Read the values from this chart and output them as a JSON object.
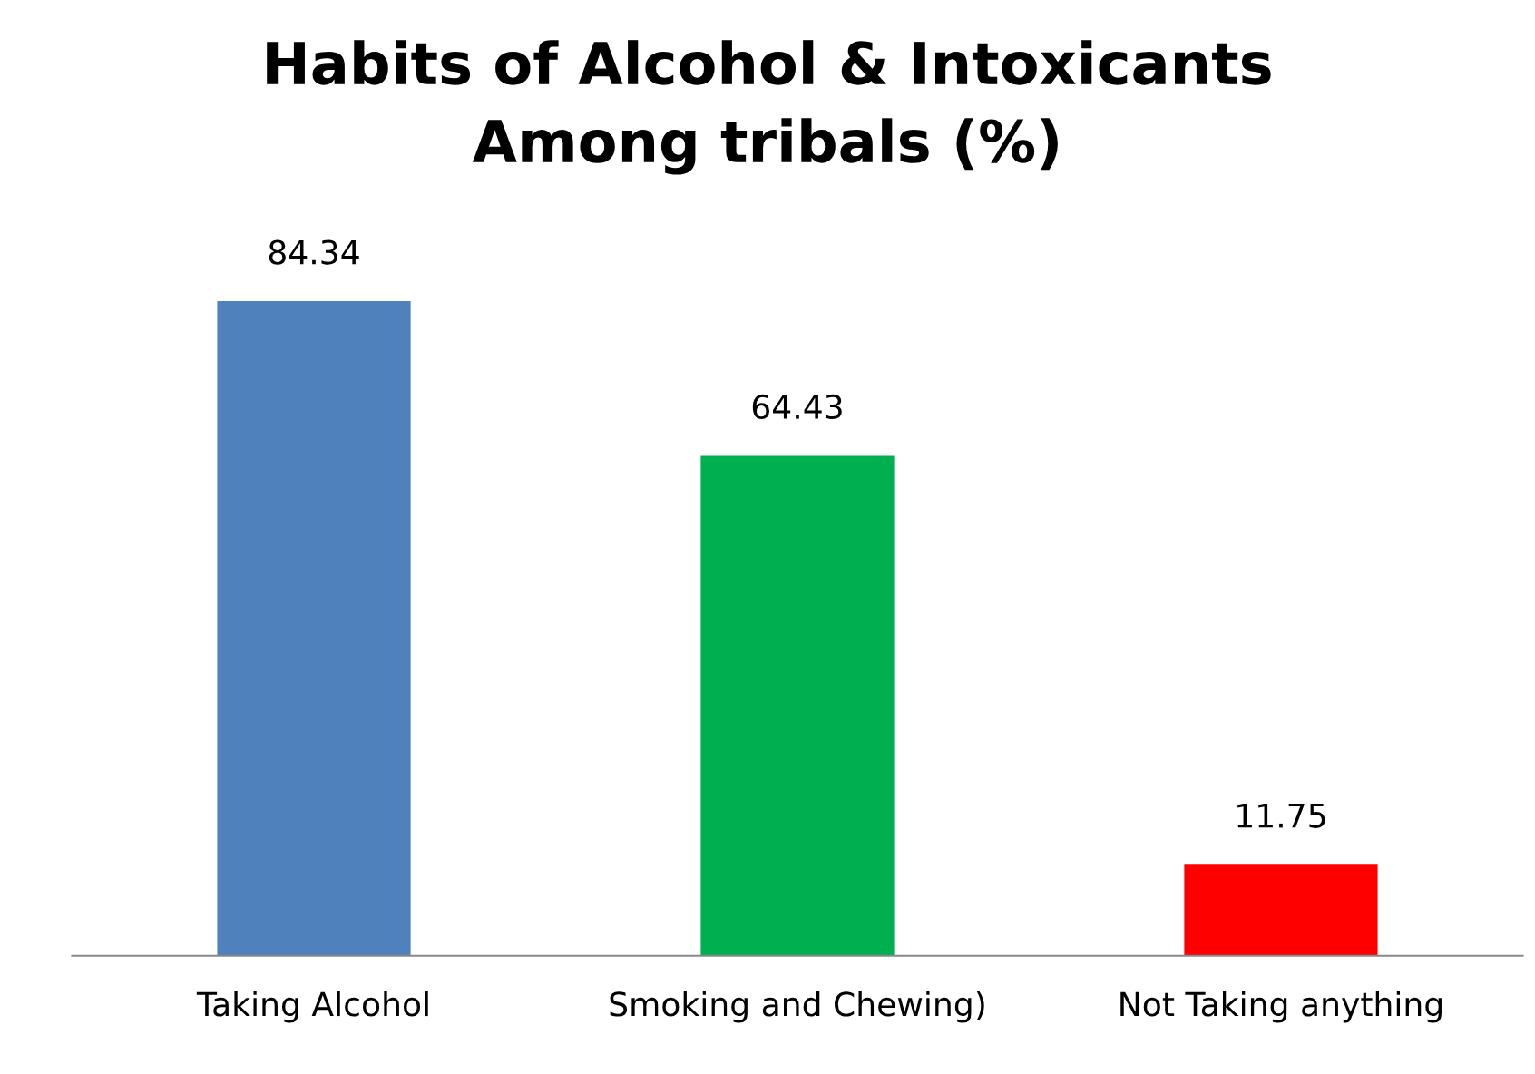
{
  "chart_data": {
    "type": "bar",
    "title": "Habits of Alcohol & Intoxicants\nAmong tribals (%)",
    "categories": [
      "Taking Alcohol",
      "Smoking and Chewing)",
      "Not Taking anything"
    ],
    "values": [
      84.34,
      64.43,
      11.75
    ],
    "colors": [
      "#4f81bd",
      "#00b050",
      "#ff0000"
    ],
    "data_labels": true,
    "grid": false,
    "legend": false,
    "tick_labels": "x"
  }
}
